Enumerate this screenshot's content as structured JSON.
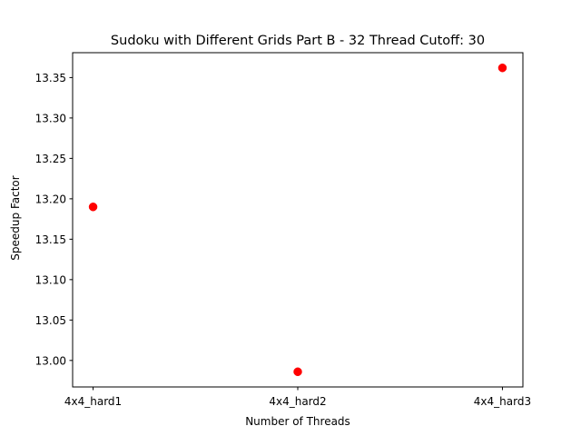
{
  "chart_data": {
    "type": "scatter",
    "title": "Sudoku with Different Grids Part B - 32 Thread Cutoff: 30",
    "xlabel": "Number of Threads",
    "ylabel": "Speedup Factor",
    "categories": [
      "4x4_hard1",
      "4x4_hard2",
      "4x4_hard3"
    ],
    "series": [
      {
        "values": [
          13.19,
          12.986,
          13.362
        ],
        "color": "#ff0000",
        "marker": "circle"
      }
    ],
    "ylim": [
      12.9672,
      13.3808
    ],
    "yticks": [
      13.0,
      13.05,
      13.1,
      13.15,
      13.2,
      13.25,
      13.3,
      13.35
    ],
    "ytick_labels": [
      "13.00",
      "13.05",
      "13.10",
      "13.15",
      "13.20",
      "13.25",
      "13.30",
      "13.35"
    ],
    "grid": false,
    "legend": "none"
  }
}
